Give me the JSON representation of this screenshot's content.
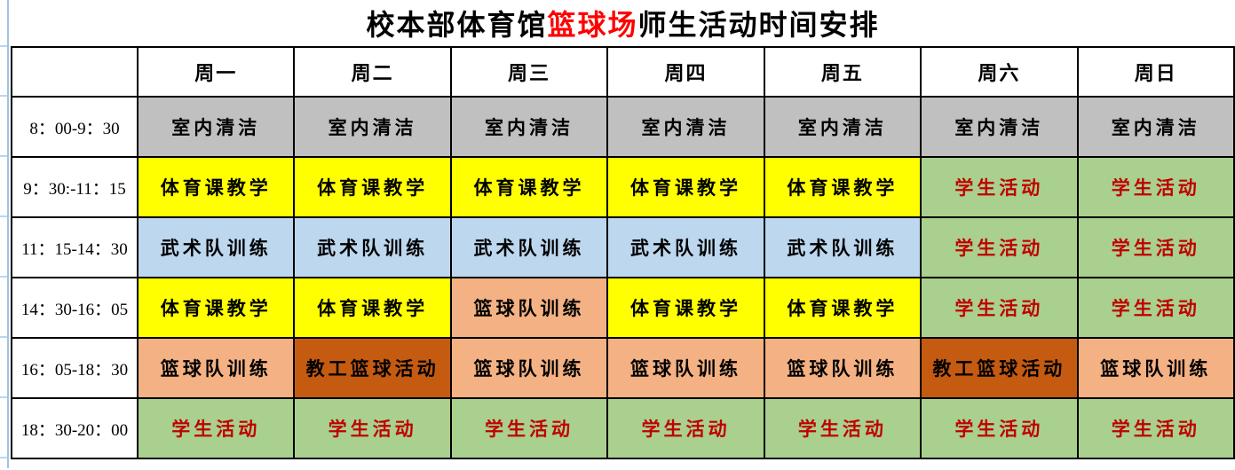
{
  "title": {
    "part1": "校本部体育馆",
    "highlight": "篮球场",
    "part2": "师生活动时间安排",
    "highlight_color": "#FF0000"
  },
  "schedule": {
    "corner_label": "",
    "day_headers": [
      "周一",
      "周二",
      "周三",
      "周四",
      "周五",
      "周六",
      "周日"
    ],
    "cell_styles": {
      "cleaning": {
        "bg": "#C0C0C0",
        "fg": "#000000"
      },
      "pe": {
        "bg": "#FFFF00",
        "fg": "#000000"
      },
      "martial": {
        "bg": "#BDD7EE",
        "fg": "#000000"
      },
      "basketball": {
        "bg": "#F4B183",
        "fg": "#000000"
      },
      "staff": {
        "bg": "#C55A11",
        "fg": "#000000"
      },
      "student": {
        "bg": "#A9D08E",
        "fg": "#C00000"
      }
    },
    "rows": [
      {
        "time": "8：00-9：30",
        "cells": [
          {
            "text": "室内清洁",
            "type": "cleaning"
          },
          {
            "text": "室内清洁",
            "type": "cleaning"
          },
          {
            "text": "室内清洁",
            "type": "cleaning"
          },
          {
            "text": "室内清洁",
            "type": "cleaning"
          },
          {
            "text": "室内清洁",
            "type": "cleaning"
          },
          {
            "text": "室内清洁",
            "type": "cleaning"
          },
          {
            "text": "室内清洁",
            "type": "cleaning"
          }
        ]
      },
      {
        "time": "9：30:-11：15",
        "cells": [
          {
            "text": "体育课教学",
            "type": "pe"
          },
          {
            "text": "体育课教学",
            "type": "pe"
          },
          {
            "text": "体育课教学",
            "type": "pe"
          },
          {
            "text": "体育课教学",
            "type": "pe"
          },
          {
            "text": "体育课教学",
            "type": "pe"
          },
          {
            "text": "学生活动",
            "type": "student"
          },
          {
            "text": "学生活动",
            "type": "student"
          }
        ]
      },
      {
        "time": "11：15-14：30",
        "cells": [
          {
            "text": "武术队训练",
            "type": "martial"
          },
          {
            "text": "武术队训练",
            "type": "martial"
          },
          {
            "text": "武术队训练",
            "type": "martial"
          },
          {
            "text": "武术队训练",
            "type": "martial"
          },
          {
            "text": "武术队训练",
            "type": "martial"
          },
          {
            "text": "学生活动",
            "type": "student"
          },
          {
            "text": "学生活动",
            "type": "student"
          }
        ]
      },
      {
        "time": "14：30-16：05",
        "cells": [
          {
            "text": "体育课教学",
            "type": "pe"
          },
          {
            "text": "体育课教学",
            "type": "pe"
          },
          {
            "text": "篮球队训练",
            "type": "basketball"
          },
          {
            "text": "体育课教学",
            "type": "pe"
          },
          {
            "text": "体育课教学",
            "type": "pe"
          },
          {
            "text": "学生活动",
            "type": "student"
          },
          {
            "text": "学生活动",
            "type": "student"
          }
        ]
      },
      {
        "time": "16：05-18：30",
        "cells": [
          {
            "text": "篮球队训练",
            "type": "basketball"
          },
          {
            "text": "教工篮球活动",
            "type": "staff"
          },
          {
            "text": "篮球队训练",
            "type": "basketball"
          },
          {
            "text": "篮球队训练",
            "type": "basketball"
          },
          {
            "text": "篮球队训练",
            "type": "basketball"
          },
          {
            "text": "教工篮球活动",
            "type": "staff"
          },
          {
            "text": "篮球队训练",
            "type": "basketball"
          }
        ]
      },
      {
        "time": "18：30-20：00",
        "cells": [
          {
            "text": "学生活动",
            "type": "student"
          },
          {
            "text": "学生活动",
            "type": "student"
          },
          {
            "text": "学生活动",
            "type": "student"
          },
          {
            "text": "学生活动",
            "type": "student"
          },
          {
            "text": "学生活动",
            "type": "student"
          },
          {
            "text": "学生活动",
            "type": "student"
          },
          {
            "text": "学生活动",
            "type": "student"
          }
        ]
      }
    ]
  }
}
